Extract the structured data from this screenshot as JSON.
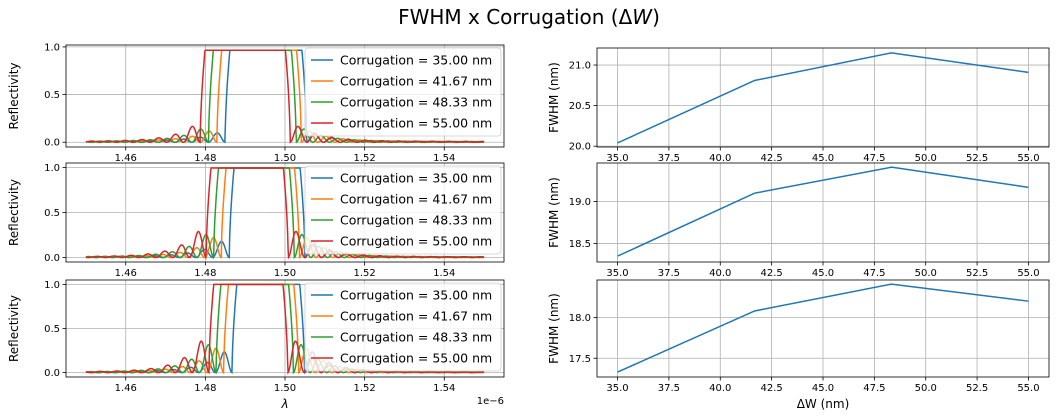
{
  "figure": {
    "title": "FWHM x Corrugation (ΔW)",
    "colors": [
      "#1f77b4",
      "#ff7f0e",
      "#2ca02c",
      "#d62728"
    ]
  },
  "chart_data": [
    {
      "type": "line",
      "panel": "reflectivity-1",
      "ylabel": "Reflectivity",
      "xlabel": "",
      "xlim": [
        1.445,
        1.555
      ],
      "ylim": [
        -0.05,
        1.02
      ],
      "xticks": [
        1.46,
        1.48,
        1.5,
        1.52,
        1.54
      ],
      "xtick_labels": [
        "1.46",
        "1.48",
        "1.50",
        "1.52",
        "1.54"
      ],
      "yticks": [
        0.0,
        0.5,
        1.0
      ],
      "ytick_labels": [
        "0.0",
        "0.5",
        "1.0"
      ],
      "grid": true,
      "legend": "right",
      "band": [
        {
          "name": "Corrugation = 35.00 nm",
          "center": 1.4952,
          "width": 0.0205,
          "rmax": 0.965,
          "side": 0.1
        },
        {
          "name": "Corrugation = 41.67 nm",
          "center": 1.4935,
          "width": 0.0212,
          "rmax": 0.965,
          "side": 0.13
        },
        {
          "name": "Corrugation = 48.33 nm",
          "center": 1.4918,
          "width": 0.022,
          "rmax": 0.965,
          "side": 0.16
        },
        {
          "name": "Corrugation = 55.00 nm",
          "center": 1.49,
          "width": 0.0226,
          "rmax": 0.965,
          "side": 0.2
        }
      ]
    },
    {
      "type": "line",
      "panel": "reflectivity-2",
      "ylabel": "Reflectivity",
      "xlabel": "",
      "xlim": [
        1.445,
        1.555
      ],
      "ylim": [
        -0.05,
        1.05
      ],
      "xticks": [
        1.46,
        1.48,
        1.5,
        1.52,
        1.54
      ],
      "xtick_labels": [
        "1.46",
        "1.48",
        "1.50",
        "1.52",
        "1.54"
      ],
      "yticks": [
        0.0,
        0.5,
        1.0
      ],
      "ytick_labels": [
        "0.0",
        "0.5",
        "1.0"
      ],
      "grid": true,
      "legend": "right",
      "band": [
        {
          "name": "Corrugation = 35.00 nm",
          "center": 1.4955,
          "width": 0.019,
          "rmax": 0.995,
          "side": 0.22
        },
        {
          "name": "Corrugation = 41.67 nm",
          "center": 1.4938,
          "width": 0.0196,
          "rmax": 0.995,
          "side": 0.28
        },
        {
          "name": "Corrugation = 48.33 nm",
          "center": 1.4922,
          "width": 0.0202,
          "rmax": 0.995,
          "side": 0.33
        },
        {
          "name": "Corrugation = 55.00 nm",
          "center": 1.4905,
          "width": 0.0206,
          "rmax": 0.995,
          "side": 0.38
        }
      ]
    },
    {
      "type": "line",
      "panel": "reflectivity-3",
      "ylabel": "Reflectivity",
      "xlabel": "λ",
      "x_offset_label": "1e−6",
      "xlim": [
        1.445,
        1.555
      ],
      "ylim": [
        -0.05,
        1.05
      ],
      "xticks": [
        1.46,
        1.48,
        1.5,
        1.52,
        1.54
      ],
      "xtick_labels": [
        "1.46",
        "1.48",
        "1.50",
        "1.52",
        "1.54"
      ],
      "yticks": [
        0.0,
        0.5,
        1.0
      ],
      "ytick_labels": [
        "0.0",
        "0.5",
        "1.0"
      ],
      "grid": true,
      "legend": "right",
      "band": [
        {
          "name": "Corrugation = 35.00 nm",
          "center": 1.4958,
          "width": 0.0182,
          "rmax": 1.0,
          "side": 0.3
        },
        {
          "name": "Corrugation = 41.67 nm",
          "center": 1.494,
          "width": 0.0188,
          "rmax": 1.0,
          "side": 0.36
        },
        {
          "name": "Corrugation = 48.33 nm",
          "center": 1.4924,
          "width": 0.0194,
          "rmax": 1.0,
          "side": 0.42
        },
        {
          "name": "Corrugation = 55.00 nm",
          "center": 1.4908,
          "width": 0.0198,
          "rmax": 1.0,
          "side": 0.48
        }
      ]
    },
    {
      "type": "line",
      "panel": "fwhm-1",
      "ylabel": "FWHM (nm)",
      "xlabel": "",
      "x": [
        35.0,
        41.67,
        48.33,
        55.0
      ],
      "series": [
        {
          "values": [
            20.04,
            20.81,
            21.15,
            20.91
          ]
        }
      ],
      "xlim": [
        34.0,
        56.0
      ],
      "ylim": [
        19.99,
        21.21
      ],
      "xticks": [
        35.0,
        37.5,
        40.0,
        42.5,
        45.0,
        47.5,
        50.0,
        52.5,
        55.0
      ],
      "xtick_labels": [
        "35.0",
        "37.5",
        "40.0",
        "42.5",
        "45.0",
        "47.5",
        "50.0",
        "52.5",
        "55.0"
      ],
      "yticks": [
        20.0,
        20.5,
        21.0
      ],
      "ytick_labels": [
        "20.0",
        "20.5",
        "21.0"
      ],
      "grid": true
    },
    {
      "type": "line",
      "panel": "fwhm-2",
      "ylabel": "FWHM (nm)",
      "xlabel": "",
      "x": [
        35.0,
        41.67,
        48.33,
        55.0
      ],
      "series": [
        {
          "values": [
            18.35,
            19.1,
            19.41,
            19.17
          ]
        }
      ],
      "xlim": [
        34.0,
        56.0
      ],
      "ylim": [
        18.28,
        19.46
      ],
      "xticks": [
        35.0,
        37.5,
        40.0,
        42.5,
        45.0,
        47.5,
        50.0,
        52.5,
        55.0
      ],
      "xtick_labels": [
        "35.0",
        "37.5",
        "40.0",
        "42.5",
        "45.0",
        "47.5",
        "50.0",
        "52.5",
        "55.0"
      ],
      "yticks": [
        18.5,
        19.0
      ],
      "ytick_labels": [
        "18.5",
        "19.0"
      ],
      "grid": true
    },
    {
      "type": "line",
      "panel": "fwhm-3",
      "ylabel": "FWHM (nm)",
      "xlabel": "ΔW (nm)",
      "x": [
        35.0,
        41.67,
        48.33,
        55.0
      ],
      "series": [
        {
          "values": [
            17.33,
            18.08,
            18.41,
            18.2
          ]
        }
      ],
      "xlim": [
        34.0,
        56.0
      ],
      "ylim": [
        17.27,
        18.46
      ],
      "xticks": [
        35.0,
        37.5,
        40.0,
        42.5,
        45.0,
        47.5,
        50.0,
        52.5,
        55.0
      ],
      "xtick_labels": [
        "35.0",
        "37.5",
        "40.0",
        "42.5",
        "45.0",
        "47.5",
        "50.0",
        "52.5",
        "55.0"
      ],
      "yticks": [
        17.5,
        18.0
      ],
      "ytick_labels": [
        "17.5",
        "18.0"
      ],
      "grid": true
    }
  ]
}
